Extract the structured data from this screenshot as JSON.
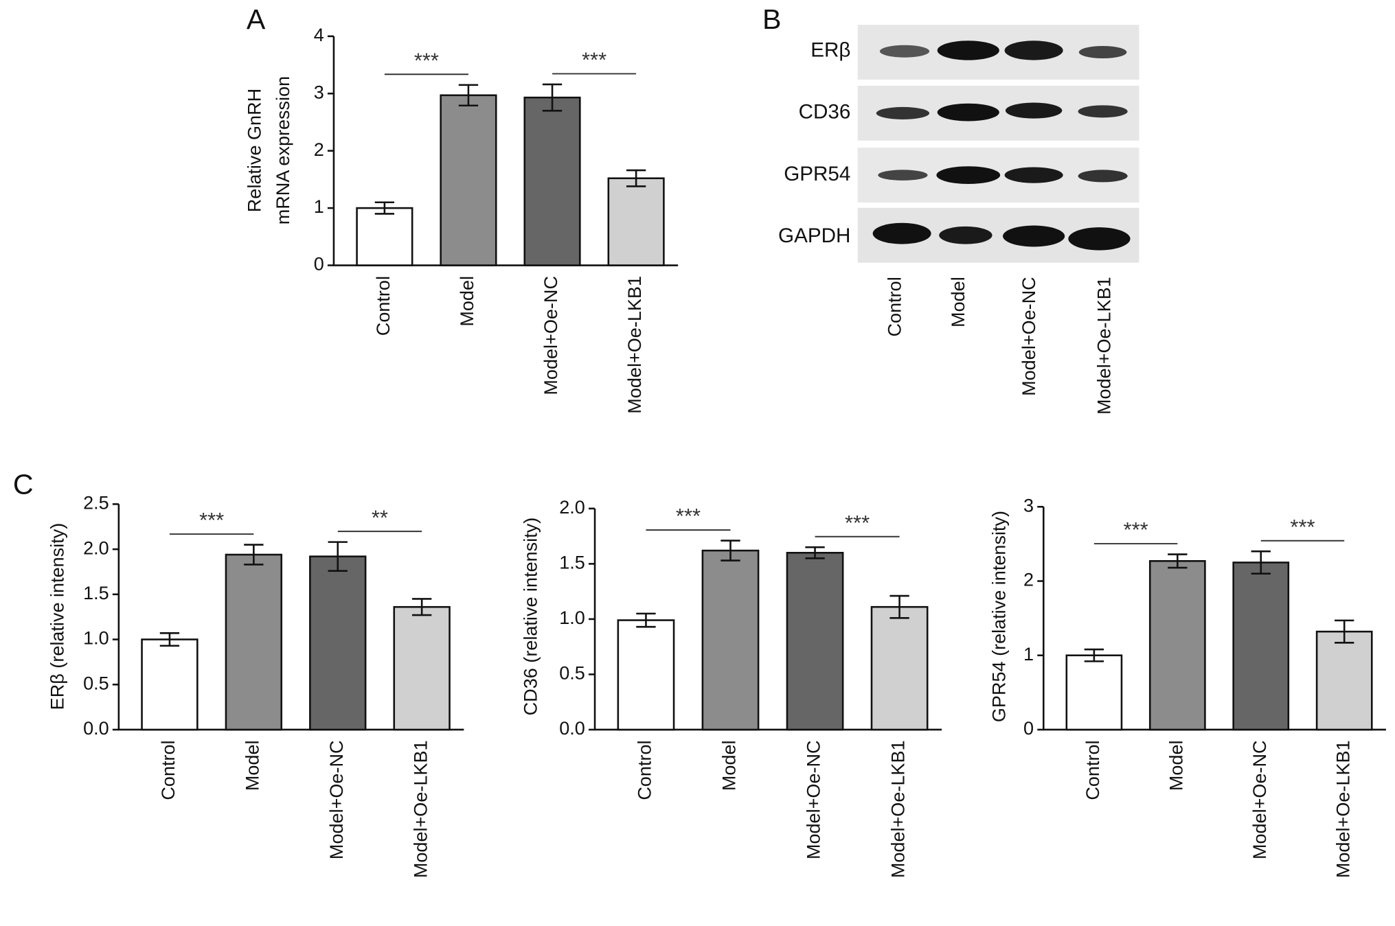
{
  "chart_data": [
    {
      "type": "bar",
      "panel": "A",
      "ylabel": [
        "Relative GnRH",
        "mRNA expression"
      ],
      "categories": [
        "Control",
        "Model",
        "Model+Oe-NC",
        "Model+Oe-LKB1"
      ],
      "values": [
        1.0,
        2.97,
        2.93,
        1.52
      ],
      "errors": [
        0.1,
        0.18,
        0.23,
        0.14
      ],
      "colors": [
        "#ffffff",
        "#8c8c8c",
        "#666666",
        "#d0d0d0"
      ],
      "ylim": [
        0,
        4
      ],
      "yticks": [
        0,
        1,
        2,
        3,
        4
      ],
      "annotations": [
        {
          "text": "***",
          "between": [
            "Control",
            "Model"
          ]
        },
        {
          "text": "***",
          "between": [
            "Model+Oe-NC",
            "Model+Oe-LKB1"
          ]
        }
      ]
    },
    {
      "type": "blot",
      "panel": "B",
      "rows": [
        "ERβ",
        "CD36",
        "GPR54",
        "GAPDH"
      ],
      "categories": [
        "Control",
        "Model",
        "Model+Oe-NC",
        "Model+Oe-LKB1"
      ]
    },
    {
      "type": "bar",
      "panel": "C",
      "ylabel": [
        "ERβ  (relative intensity)"
      ],
      "categories": [
        "Control",
        "Model",
        "Model+Oe-NC",
        "Model+Oe-LKB1"
      ],
      "values": [
        1.0,
        1.94,
        1.92,
        1.36
      ],
      "errors": [
        0.07,
        0.11,
        0.16,
        0.09
      ],
      "colors": [
        "#ffffff",
        "#8c8c8c",
        "#666666",
        "#d0d0d0"
      ],
      "ylim": [
        0,
        2.5
      ],
      "yticks": [
        {
          "value": 0,
          "label": "0.0"
        },
        0.5,
        {
          "value": 1,
          "label": "1.0"
        },
        1.5,
        {
          "value": 2,
          "label": "2.0"
        },
        2.5
      ],
      "annotations": [
        {
          "text": "***",
          "between": [
            "Control",
            "Model"
          ]
        },
        {
          "text": "**",
          "between": [
            "Model+Oe-NC",
            "Model+Oe-LKB1"
          ]
        }
      ]
    },
    {
      "type": "bar",
      "ylabel": [
        "CD36  (relative intensity)"
      ],
      "categories": [
        "Control",
        "Model",
        "Model+Oe-NC",
        "Model+Oe-LKB1"
      ],
      "values": [
        0.99,
        1.62,
        1.6,
        1.11
      ],
      "errors": [
        0.06,
        0.09,
        0.05,
        0.1
      ],
      "colors": [
        "#ffffff",
        "#8c8c8c",
        "#666666",
        "#d0d0d0"
      ],
      "ylim": [
        0,
        2
      ],
      "yticks": [
        {
          "value": 0,
          "label": "0.0"
        },
        0.5,
        {
          "value": 1,
          "label": "1.0"
        },
        1.5,
        {
          "value": 2,
          "label": "2.0"
        }
      ],
      "annotations": [
        {
          "text": "***",
          "between": [
            "Control",
            "Model"
          ]
        },
        {
          "text": "***",
          "between": [
            "Model+Oe-NC",
            "Model+Oe-LKB1"
          ]
        }
      ]
    },
    {
      "type": "bar",
      "ylabel": [
        "GPR54  (relative intensity)"
      ],
      "categories": [
        "Control",
        "Model",
        "Model+Oe-NC",
        "Model+Oe-LKB1"
      ],
      "values": [
        1.0,
        2.27,
        2.25,
        1.32
      ],
      "errors": [
        0.08,
        0.09,
        0.15,
        0.15
      ],
      "colors": [
        "#ffffff",
        "#8c8c8c",
        "#666666",
        "#d0d0d0"
      ],
      "ylim": [
        0,
        3
      ],
      "yticks": [
        0,
        1,
        2,
        3
      ],
      "annotations": [
        {
          "text": "***",
          "between": [
            "Control",
            "Model"
          ]
        },
        {
          "text": "***",
          "between": [
            "Model+Oe-NC",
            "Model+Oe-LKB1"
          ]
        }
      ]
    }
  ]
}
